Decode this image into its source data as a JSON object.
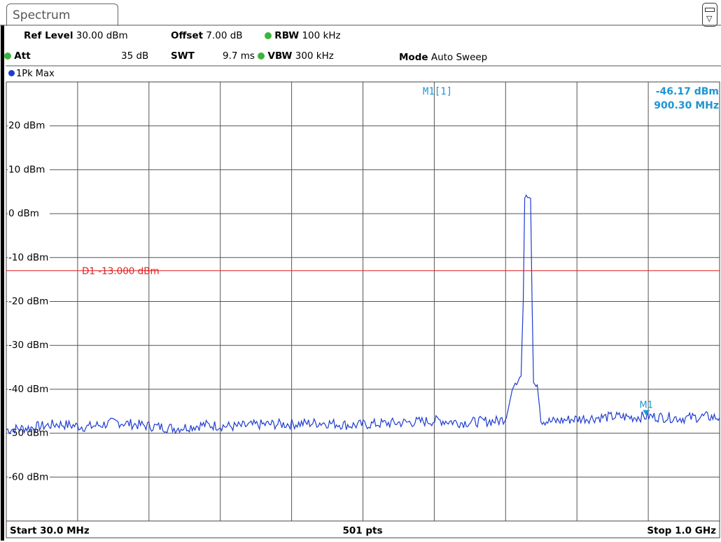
{
  "tab": {
    "title": "Spectrum"
  },
  "settings": {
    "ref_level_label": "Ref Level",
    "ref_level_value": "30.00 dBm",
    "offset_label": "Offset",
    "offset_value": "7.00 dB",
    "rbw_label": "RBW",
    "rbw_value": "100 kHz",
    "att_label": "Att",
    "att_value": "35 dB",
    "swt_label": "SWT",
    "swt_value": "9.7 ms",
    "vbw_label": "VBW",
    "vbw_value": "300 kHz",
    "mode_label": "Mode",
    "mode_value": "Auto Sweep"
  },
  "trace": {
    "label": "1Pk Max",
    "color": "#1e3ccf"
  },
  "marker": {
    "header": "M1[1]",
    "level": "-46.17 dBm",
    "frequency": "900.30 MHz",
    "label": "M1",
    "freq_mhz": 900.3,
    "level_dbm": -46.17,
    "color": "#1e96d2"
  },
  "display_line": {
    "label": "D1  -13.000 dBm",
    "level_dbm": -13.0,
    "color": "#e02020"
  },
  "footer": {
    "start": "Start 30.0 MHz",
    "points": "501 pts",
    "stop": "Stop 1.0 GHz"
  },
  "chart_data": {
    "type": "line",
    "x_start_mhz": 30.0,
    "x_stop_mhz": 1000.0,
    "x_divisions": 10,
    "y_top_dbm": 30.0,
    "y_bottom_dbm": -70.0,
    "y_ticks": [
      20,
      10,
      0,
      -10,
      -20,
      -30,
      -40,
      -50,
      -60
    ],
    "y_tick_labels": [
      "20 dBm",
      "10 dBm",
      "0 dBm",
      "-10 dBm",
      "-20 dBm",
      "-30 dBm",
      "-40 dBm",
      "-50 dBm",
      "-60 dBm"
    ],
    "grid": true,
    "noise_floor_dbm": -48.5,
    "series": [
      {
        "points": [
          [
            30,
            -49.2
          ],
          [
            60,
            -48.8
          ],
          [
            100,
            -47.9
          ],
          [
            140,
            -48.6
          ],
          [
            180,
            -47.5
          ],
          [
            220,
            -48.3
          ],
          [
            260,
            -48.9
          ],
          [
            300,
            -48.1
          ],
          [
            340,
            -48.5
          ],
          [
            380,
            -48.0
          ],
          [
            420,
            -47.9
          ],
          [
            460,
            -47.6
          ],
          [
            500,
            -48.2
          ],
          [
            540,
            -47.8
          ],
          [
            580,
            -47.5
          ],
          [
            620,
            -47.1
          ],
          [
            650,
            -47.6
          ],
          [
            680,
            -47.3
          ],
          [
            700,
            -47.2
          ],
          [
            710,
            -46.5
          ],
          [
            720,
            -38.5
          ],
          [
            730,
            -37.0
          ],
          [
            733,
            -20.0
          ],
          [
            735,
            3.5
          ],
          [
            737,
            4.2
          ],
          [
            739,
            3.3
          ],
          [
            741,
            4.0
          ],
          [
            743,
            3.6
          ],
          [
            745,
            -20.0
          ],
          [
            747,
            -37.5
          ],
          [
            752,
            -39.0
          ],
          [
            757,
            -47.0
          ],
          [
            770,
            -47.4
          ],
          [
            800,
            -46.8
          ],
          [
            830,
            -46.5
          ],
          [
            860,
            -46.2
          ],
          [
            880,
            -46.4
          ],
          [
            900,
            -46.17
          ],
          [
            920,
            -46.3
          ],
          [
            950,
            -46.6
          ],
          [
            980,
            -46.2
          ],
          [
            1000,
            -46.5
          ]
        ]
      }
    ]
  }
}
